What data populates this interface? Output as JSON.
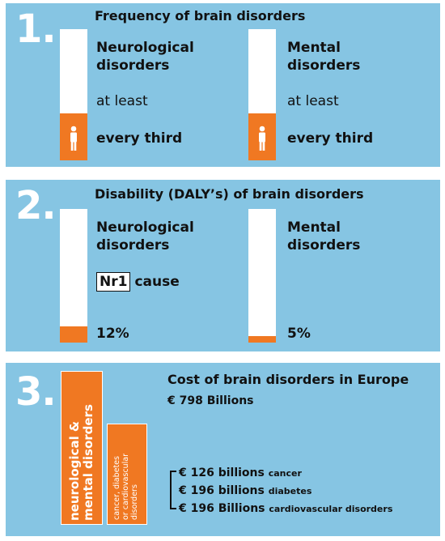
{
  "section1": {
    "number": "1.",
    "title": "Frequency of brain disorders",
    "left": {
      "label": "Neurological\ndisorders",
      "qualifier": "at least",
      "value": "every third",
      "fill_fraction": 0.36
    },
    "right": {
      "label": "Mental\ndisorders",
      "qualifier": "at least",
      "value": "every third",
      "fill_fraction": 0.36
    }
  },
  "section2": {
    "number": "2.",
    "title": "Disability (DALY’s) of brain disorders",
    "left": {
      "label": "Neurological\ndisorders",
      "badge": "Nr1",
      "badge_suffix": "cause",
      "value": "12%",
      "fill_fraction": 0.12
    },
    "right": {
      "label": "Mental\ndisorders",
      "value": "5%",
      "fill_fraction": 0.05
    }
  },
  "section3": {
    "number": "3.",
    "title": "Cost of brain disorders in Europe",
    "total": "€ 798 Billions",
    "big_bar_label": "neurological &\nmental disorders",
    "small_bar_label": "cancer, diabetes\nor cardiovascular\ndisorders",
    "costs": [
      {
        "amount": "€ 126 billions",
        "category": "cancer"
      },
      {
        "amount": "€ 196 billions",
        "category": "diabetes"
      },
      {
        "amount": "€ 196 Billions",
        "category": "cardiovascular disorders"
      }
    ]
  },
  "colors": {
    "panel": "#86c5e3",
    "accent": "#f07822",
    "bar": "#ffffff"
  },
  "icons": {
    "person": "person-icon"
  }
}
